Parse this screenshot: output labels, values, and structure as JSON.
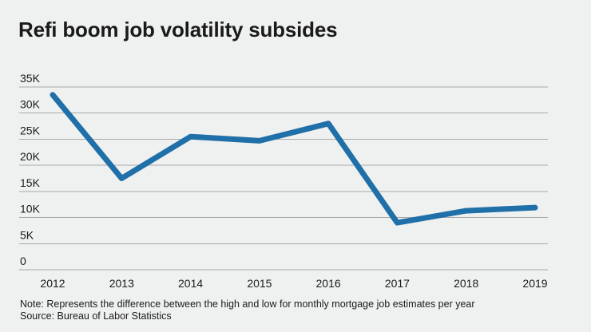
{
  "header": {
    "title": "Refi boom job volatility subsides"
  },
  "chart_data": {
    "type": "line",
    "title": "Refi boom job volatility subsides",
    "categories": [
      "2012",
      "2013",
      "2014",
      "2015",
      "2016",
      "2017",
      "2018",
      "2019"
    ],
    "values": [
      33500,
      17500,
      25500,
      24700,
      28000,
      9000,
      11300,
      11900
    ],
    "series_name": "Difference between high and low for monthly mortgage job estimates",
    "xlabel": "",
    "ylabel": "",
    "ylim": [
      0,
      35000
    ],
    "ytick_step": 5000,
    "ytick_labels": [
      "0",
      "5K",
      "10K",
      "15K",
      "20K",
      "25K",
      "30K",
      "35K"
    ],
    "grid": true,
    "legend": "none",
    "line_color": "#1F6FA8",
    "line_width": 7
  },
  "footer": {
    "note": "Note: Represents the difference between the high and low for monthly mortgage job estimates per year",
    "source": "Source: Bureau of Labor Statistics"
  },
  "colors": {
    "background": "#EFF1F0",
    "grid": "#A8A8A8",
    "text": "#1A1A1A",
    "accent": "#1F6FA8"
  }
}
